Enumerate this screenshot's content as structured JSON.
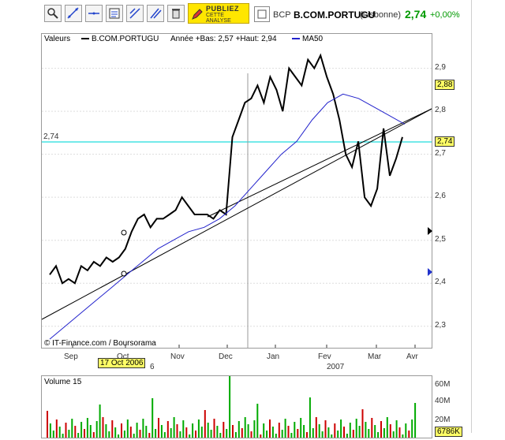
{
  "toolbar": {
    "buttons": [
      "zoom-icon",
      "trendline-icon",
      "horizontal-line-icon",
      "analysis-icon",
      "arrows-icon",
      "parallel-lines-icon",
      "trash-icon"
    ],
    "publiez_title": "PUBLIEZ",
    "publiez_line1": "CETTE",
    "publiez_line2": "ANALYSE"
  },
  "header": {
    "market": "BCP",
    "name": "B.COM.PORTUGU",
    "exchange": "(Lisbonne)",
    "price": "2,74",
    "change": "+0,00%",
    "price_color": "#009900"
  },
  "legend": {
    "valeurs": "Valeurs",
    "series_name": "B.COM.PORTUGU",
    "range": "Année +Bas: 2,57 +Haut: 2,94",
    "ma_name": "MA50"
  },
  "hline_label": "2,74",
  "tags": {
    "top": "2,88",
    "mid": "2,74"
  },
  "credit": "© IT-Finance.com / Boursorama",
  "date_tooltip": "17 Oct 2006",
  "year_labels": {
    "y2006": "6",
    "y2007": "2007"
  },
  "volume": {
    "title": "Volume 15",
    "ticks": [
      "60M",
      "40M",
      "20M"
    ],
    "last": "6786K"
  },
  "chart_data": {
    "type": "line",
    "x_ticks": [
      "Sep",
      "Oct",
      "Nov",
      "Dec",
      "Jan",
      "Fev",
      "Mar",
      "Avr"
    ],
    "y_ticks": [
      "2,9",
      "2,8",
      "2,7",
      "2,6",
      "2,5",
      "2,4",
      "2,3"
    ],
    "ylim": [
      2.25,
      2.98
    ],
    "series": [
      {
        "name": "B.COM.PORTUGU",
        "values": [
          2.42,
          2.44,
          2.4,
          2.41,
          2.4,
          2.44,
          2.43,
          2.45,
          2.44,
          2.46,
          2.45,
          2.46,
          2.48,
          2.52,
          2.55,
          2.56,
          2.53,
          2.55,
          2.55,
          2.56,
          2.57,
          2.6,
          2.58,
          2.56,
          2.56,
          2.56,
          2.55,
          2.57,
          2.56,
          2.74,
          2.78,
          2.82,
          2.83,
          2.86,
          2.82,
          2.88,
          2.85,
          2.8,
          2.9,
          2.88,
          2.86,
          2.92,
          2.9,
          2.93,
          2.88,
          2.84,
          2.78,
          2.7,
          2.67,
          2.73,
          2.6,
          2.58,
          2.62,
          2.76,
          2.65,
          2.69,
          2.74
        ]
      },
      {
        "name": "MA50",
        "values": [
          2.27,
          2.3,
          2.33,
          2.36,
          2.39,
          2.42,
          2.45,
          2.48,
          2.5,
          2.52,
          2.53,
          2.55,
          2.58,
          2.62,
          2.66,
          2.7,
          2.73,
          2.78,
          2.82,
          2.84,
          2.83,
          2.81,
          2.79,
          2.77
        ]
      }
    ]
  }
}
